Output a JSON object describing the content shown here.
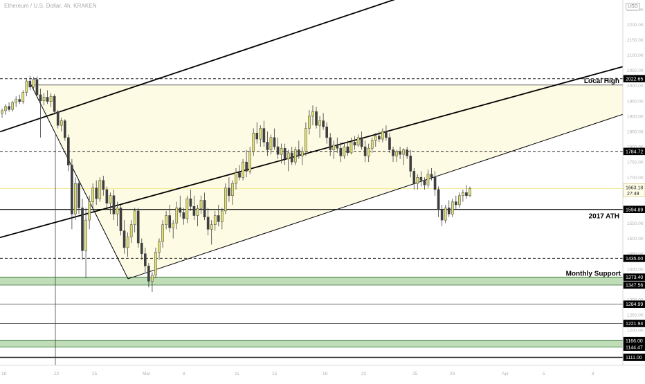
{
  "header": {
    "symbol_title": "Ethereum / U.S. Dollar, 4h, KRAKEN",
    "currency": "USD"
  },
  "colors": {
    "bull": "#dede74",
    "bear": "#3e3e3e",
    "wick": "#3e3e3e",
    "triangle_fill": "#fdfbe3",
    "support_band": "#a9d3a0",
    "support_band_edge": "#2f6b2f",
    "current_price_line": "#f5e99a",
    "current_price_label": "#fdfde8"
  },
  "chart_data": {
    "type": "candlestick",
    "title": "Ethereum / U.S. Dollar, 4h, KRAKEN",
    "ylim": [
      1085,
      2280
    ],
    "grid": false,
    "x_tick_labels": [
      "18",
      "22",
      "25",
      "Mar",
      "8",
      "11",
      "15",
      "18",
      "22",
      "25",
      "29",
      "Apr",
      "5",
      "8"
    ],
    "y_tick_labels": [
      "2250.00",
      "2200.00",
      "2150.00",
      "2100.00",
      "2050.00",
      "2000.00",
      "1950.00",
      "1900.00",
      "1850.00",
      "1800.00",
      "1750.00",
      "1700.00",
      "1650.00",
      "1600.00",
      "1550.00",
      "1500.00",
      "1450.00",
      "1400.00",
      "1350.00",
      "1300.00",
      "1250.00",
      "1200.00",
      "1150.00"
    ],
    "horizontal_levels": [
      {
        "label": "2022.65",
        "value": 2022.65,
        "style": "dashed",
        "note": ""
      },
      {
        "label": "1784.72",
        "value": 1784.72,
        "style": "dashed",
        "note": ""
      },
      {
        "label": "1594.89",
        "value": 1594.89,
        "style": "solid",
        "note": "2017 ATH"
      },
      {
        "label": "1435.00",
        "value": 1435.0,
        "style": "dashed",
        "note": ""
      },
      {
        "label": "1284.99",
        "value": 1284.99,
        "style": "thin",
        "note": ""
      },
      {
        "label": "1221.94",
        "value": 1221.94,
        "style": "thin",
        "note": ""
      },
      {
        "label": "1111.00",
        "value": 1111.0,
        "style": "solid",
        "note": ""
      }
    ],
    "support_bands": [
      {
        "top_label": "1373.40",
        "bottom_label": "1347.56",
        "top": 1373.4,
        "bottom": 1347.56,
        "note": "Monthly Support"
      },
      {
        "top_label": "1166.00",
        "bottom_label": "1144.47",
        "top": 1166.0,
        "bottom": 1144.47,
        "note": ""
      }
    ],
    "current_price": {
      "label": "1663.18",
      "countdown": "27:48",
      "value": 1663.18
    },
    "annotations": {
      "local_high": "Local High",
      "ath": "2017 ATH",
      "monthly_support": "Monthly Support"
    },
    "trendlines": [
      {
        "from": [
          0,
          1849
        ],
        "to": [
          576,
          2286
        ],
        "width": 1.8
      },
      {
        "from": [
          0,
          1503
        ],
        "to": [
          900,
          2062
        ],
        "width": 1.8
      },
      {
        "from": [
          185,
          1368
        ],
        "to": [
          900,
          1906
        ],
        "width": 1.0
      },
      {
        "from": [
          45,
          2002
        ],
        "to": [
          185,
          1368
        ],
        "width": 1.0
      }
    ],
    "triangle_zone": {
      "top": 2002,
      "apex_x": 185,
      "apex_value": 1368,
      "right_x": 900,
      "right_top": 2002,
      "right_bottom": 1906
    },
    "vertical_marker_x": 80,
    "candles": [
      [
        1910,
        1925,
        1895,
        1918
      ],
      [
        1918,
        1940,
        1905,
        1932
      ],
      [
        1932,
        1945,
        1915,
        1922
      ],
      [
        1922,
        1950,
        1915,
        1945
      ],
      [
        1945,
        1965,
        1930,
        1955
      ],
      [
        1955,
        1970,
        1940,
        1948
      ],
      [
        1948,
        1985,
        1940,
        1978
      ],
      [
        1978,
        2025,
        1965,
        2015
      ],
      [
        2015,
        2032,
        1985,
        1995
      ],
      [
        1995,
        2028,
        1985,
        2020
      ],
      [
        2020,
        2030,
        1960,
        1970
      ],
      [
        1970,
        1990,
        1830,
        1950
      ],
      [
        1950,
        1975,
        1935,
        1962
      ],
      [
        1962,
        1985,
        1940,
        1948
      ],
      [
        1948,
        1975,
        1930,
        1965
      ],
      [
        1965,
        1972,
        1905,
        1915
      ],
      [
        1915,
        1920,
        1860,
        1870
      ],
      [
        1870,
        1895,
        1850,
        1885
      ],
      [
        1885,
        1890,
        1820,
        1830
      ],
      [
        1830,
        1840,
        1720,
        1740
      ],
      [
        1740,
        1760,
        1530,
        1580
      ],
      [
        1580,
        1700,
        1560,
        1680
      ],
      [
        1680,
        1690,
        1580,
        1600
      ],
      [
        1600,
        1630,
        1430,
        1460
      ],
      [
        1460,
        1600,
        1370,
        1560
      ],
      [
        1560,
        1640,
        1530,
        1620
      ],
      [
        1620,
        1680,
        1600,
        1665
      ],
      [
        1665,
        1690,
        1610,
        1630
      ],
      [
        1630,
        1700,
        1620,
        1690
      ],
      [
        1690,
        1705,
        1640,
        1660
      ],
      [
        1660,
        1670,
        1600,
        1615
      ],
      [
        1615,
        1650,
        1580,
        1640
      ],
      [
        1640,
        1660,
        1560,
        1580
      ],
      [
        1580,
        1620,
        1540,
        1600
      ],
      [
        1600,
        1610,
        1510,
        1525
      ],
      [
        1525,
        1560,
        1450,
        1470
      ],
      [
        1470,
        1520,
        1440,
        1505
      ],
      [
        1505,
        1560,
        1485,
        1545
      ],
      [
        1545,
        1600,
        1520,
        1590
      ],
      [
        1590,
        1600,
        1470,
        1485
      ],
      [
        1485,
        1500,
        1430,
        1450
      ],
      [
        1450,
        1470,
        1390,
        1410
      ],
      [
        1410,
        1420,
        1340,
        1360
      ],
      [
        1360,
        1390,
        1325,
        1380
      ],
      [
        1380,
        1470,
        1370,
        1455
      ],
      [
        1455,
        1500,
        1430,
        1490
      ],
      [
        1490,
        1560,
        1470,
        1545
      ],
      [
        1545,
        1590,
        1530,
        1575
      ],
      [
        1575,
        1610,
        1520,
        1535
      ],
      [
        1535,
        1560,
        1500,
        1550
      ],
      [
        1550,
        1620,
        1530,
        1600
      ],
      [
        1600,
        1640,
        1570,
        1585
      ],
      [
        1585,
        1600,
        1545,
        1565
      ],
      [
        1565,
        1640,
        1550,
        1630
      ],
      [
        1630,
        1660,
        1590,
        1605
      ],
      [
        1605,
        1640,
        1560,
        1575
      ],
      [
        1575,
        1610,
        1540,
        1598
      ],
      [
        1598,
        1640,
        1580,
        1625
      ],
      [
        1625,
        1650,
        1560,
        1570
      ],
      [
        1570,
        1600,
        1510,
        1530
      ],
      [
        1530,
        1560,
        1480,
        1545
      ],
      [
        1545,
        1590,
        1525,
        1575
      ],
      [
        1575,
        1610,
        1540,
        1555
      ],
      [
        1555,
        1600,
        1530,
        1590
      ],
      [
        1590,
        1680,
        1580,
        1665
      ],
      [
        1665,
        1700,
        1620,
        1640
      ],
      [
        1640,
        1690,
        1610,
        1680
      ],
      [
        1680,
        1730,
        1660,
        1715
      ],
      [
        1715,
        1740,
        1690,
        1700
      ],
      [
        1700,
        1760,
        1690,
        1750
      ],
      [
        1750,
        1790,
        1700,
        1720
      ],
      [
        1720,
        1800,
        1710,
        1785
      ],
      [
        1785,
        1860,
        1770,
        1845
      ],
      [
        1845,
        1880,
        1810,
        1825
      ],
      [
        1825,
        1870,
        1800,
        1860
      ],
      [
        1860,
        1885,
        1800,
        1815
      ],
      [
        1815,
        1850,
        1770,
        1790
      ],
      [
        1790,
        1840,
        1775,
        1830
      ],
      [
        1830,
        1860,
        1790,
        1800
      ],
      [
        1800,
        1830,
        1760,
        1775
      ],
      [
        1775,
        1810,
        1745,
        1795
      ],
      [
        1795,
        1810,
        1740,
        1760
      ],
      [
        1760,
        1790,
        1720,
        1780
      ],
      [
        1780,
        1800,
        1740,
        1750
      ],
      [
        1750,
        1800,
        1740,
        1790
      ],
      [
        1790,
        1820,
        1760,
        1770
      ],
      [
        1770,
        1800,
        1740,
        1785
      ],
      [
        1785,
        1880,
        1770,
        1860
      ],
      [
        1860,
        1920,
        1840,
        1900
      ],
      [
        1900,
        1935,
        1870,
        1915
      ],
      [
        1915,
        1930,
        1860,
        1870
      ],
      [
        1870,
        1900,
        1830,
        1885
      ],
      [
        1885,
        1910,
        1855,
        1865
      ],
      [
        1865,
        1880,
        1810,
        1830
      ],
      [
        1830,
        1845,
        1770,
        1790
      ],
      [
        1790,
        1820,
        1760,
        1805
      ],
      [
        1805,
        1830,
        1780,
        1795
      ],
      [
        1795,
        1815,
        1750,
        1770
      ],
      [
        1770,
        1810,
        1760,
        1800
      ],
      [
        1800,
        1820,
        1770,
        1780
      ],
      [
        1780,
        1830,
        1775,
        1815
      ],
      [
        1815,
        1835,
        1790,
        1805
      ],
      [
        1805,
        1840,
        1800,
        1830
      ],
      [
        1830,
        1850,
        1790,
        1800
      ],
      [
        1800,
        1820,
        1750,
        1770
      ],
      [
        1770,
        1810,
        1750,
        1795
      ],
      [
        1795,
        1830,
        1780,
        1820
      ],
      [
        1820,
        1845,
        1800,
        1835
      ],
      [
        1835,
        1850,
        1815,
        1825
      ],
      [
        1825,
        1860,
        1815,
        1850
      ],
      [
        1850,
        1870,
        1820,
        1830
      ],
      [
        1830,
        1845,
        1780,
        1790
      ],
      [
        1790,
        1800,
        1750,
        1770
      ],
      [
        1770,
        1790,
        1750,
        1785
      ],
      [
        1785,
        1800,
        1760,
        1775
      ],
      [
        1775,
        1795,
        1740,
        1790
      ],
      [
        1790,
        1800,
        1760,
        1770
      ],
      [
        1770,
        1790,
        1700,
        1720
      ],
      [
        1720,
        1730,
        1660,
        1680
      ],
      [
        1680,
        1710,
        1660,
        1700
      ],
      [
        1700,
        1720,
        1670,
        1690
      ],
      [
        1690,
        1700,
        1660,
        1675
      ],
      [
        1675,
        1725,
        1665,
        1710
      ],
      [
        1710,
        1730,
        1690,
        1700
      ],
      [
        1700,
        1720,
        1640,
        1660
      ],
      [
        1660,
        1670,
        1570,
        1595
      ],
      [
        1595,
        1610,
        1540,
        1560
      ],
      [
        1560,
        1610,
        1550,
        1600
      ],
      [
        1600,
        1625,
        1570,
        1580
      ],
      [
        1580,
        1630,
        1570,
        1620
      ],
      [
        1620,
        1640,
        1595,
        1610
      ],
      [
        1610,
        1650,
        1600,
        1640
      ],
      [
        1640,
        1660,
        1620,
        1650
      ],
      [
        1650,
        1675,
        1630,
        1640
      ],
      [
        1640,
        1670,
        1635,
        1663
      ]
    ]
  }
}
